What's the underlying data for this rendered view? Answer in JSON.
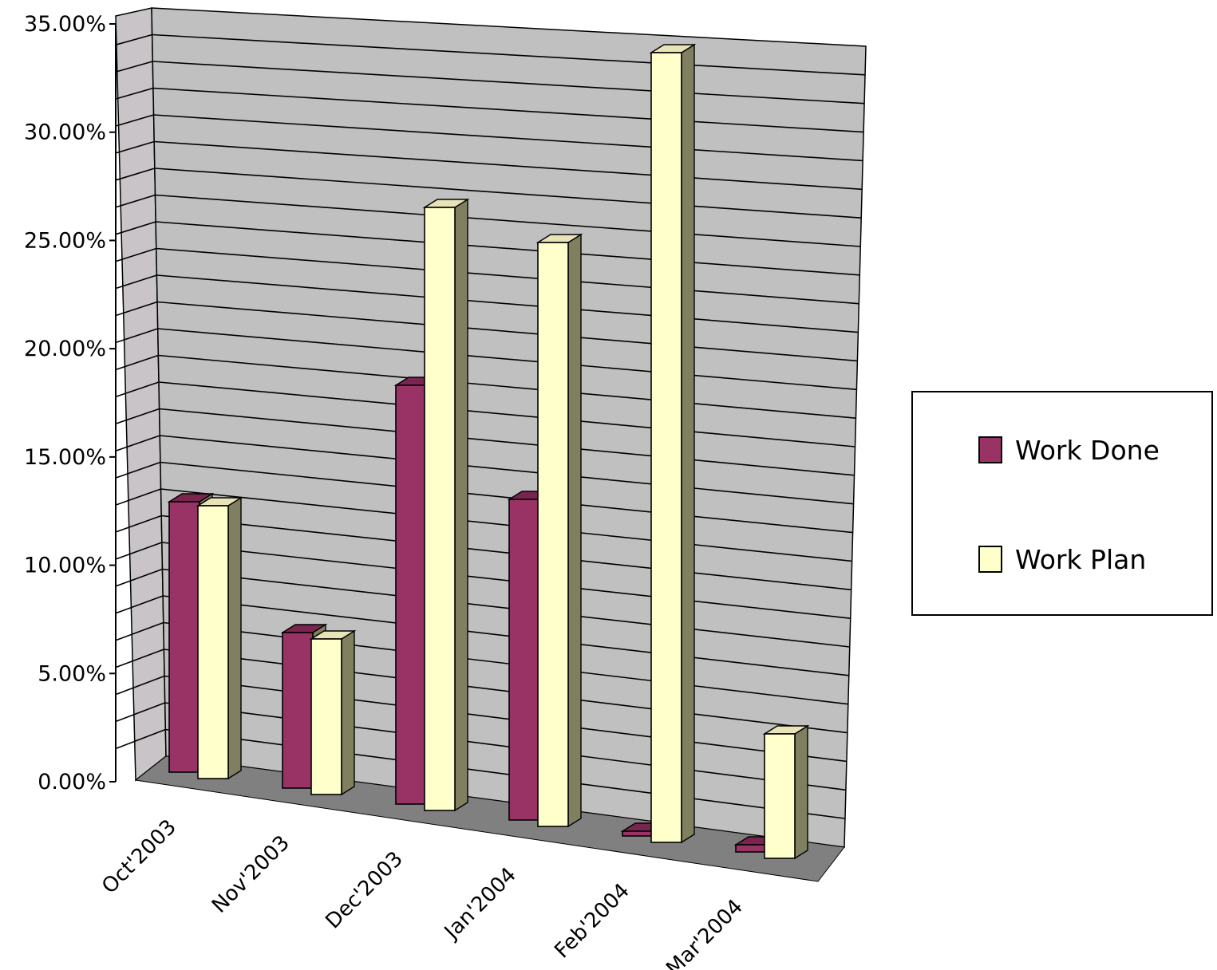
{
  "chart_data": {
    "type": "bar",
    "title": "",
    "xlabel": "",
    "ylabel": "",
    "ylim": [
      0,
      35
    ],
    "y_ticks": [
      "0.00%",
      "5.00%",
      "10.00%",
      "15.00%",
      "20.00%",
      "25.00%",
      "30.00%",
      "35.00%"
    ],
    "y_tick_values": [
      0,
      5,
      10,
      15,
      20,
      25,
      30,
      35
    ],
    "categories": [
      "Oct'2003",
      "Nov'2003",
      "Dec'2003",
      "Jan'2004",
      "Feb'2004",
      "Mar'2004"
    ],
    "series": [
      {
        "name": "Work Done",
        "color": "#993366",
        "values": [
          11.3,
          6.5,
          17.5,
          13.4,
          0.2,
          0.3
        ]
      },
      {
        "name": "Work Plan",
        "color": "#FFFFCC",
        "values": [
          11.4,
          6.5,
          25.2,
          24.4,
          33.0,
          5.2
        ]
      }
    ],
    "grid": true,
    "legend": "right",
    "style": "3d-clustered-column",
    "wall_color": "#C0C0C0",
    "floor_color": "#808080",
    "bar_side_color": "#808060"
  }
}
